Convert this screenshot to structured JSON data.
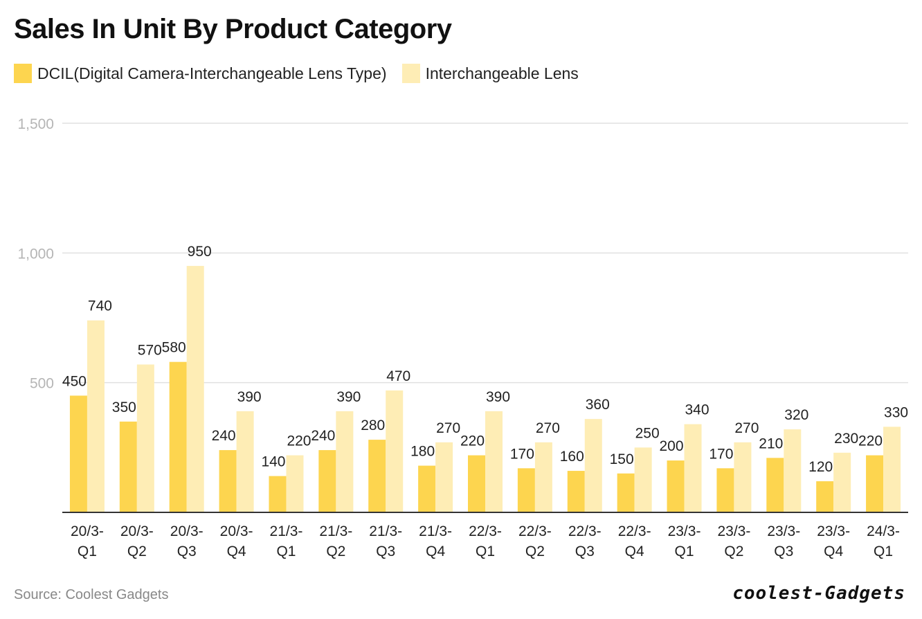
{
  "chart_data": {
    "type": "bar",
    "title": "Sales In Unit By Product Category",
    "xlabel": "",
    "ylabel": "",
    "ylim": [
      0,
      1500
    ],
    "yticks": [
      500,
      1000,
      1500
    ],
    "ytick_labels": [
      "500",
      "1,000",
      "1,500"
    ],
    "grid": true,
    "legend_position": "top-left",
    "categories": [
      [
        "20/3-",
        "Q1"
      ],
      [
        "20/3-",
        "Q2"
      ],
      [
        "20/3-",
        "Q3"
      ],
      [
        "20/3-",
        "Q4"
      ],
      [
        "21/3-",
        "Q1"
      ],
      [
        "21/3-",
        "Q2"
      ],
      [
        "21/3-",
        "Q3"
      ],
      [
        "21/3-",
        "Q4"
      ],
      [
        "22/3-",
        "Q1"
      ],
      [
        "22/3-",
        "Q2"
      ],
      [
        "22/3-",
        "Q3"
      ],
      [
        "22/3-",
        "Q4"
      ],
      [
        "23/3-",
        "Q1"
      ],
      [
        "23/3-",
        "Q2"
      ],
      [
        "23/3-",
        "Q3"
      ],
      [
        "23/3-",
        "Q4"
      ],
      [
        "24/3-",
        "Q1"
      ]
    ],
    "series": [
      {
        "name": "DCIL(Digital Camera-Interchangeable Lens Type)",
        "color": "#FDD54F",
        "values": [
          450,
          350,
          580,
          240,
          140,
          240,
          280,
          180,
          220,
          170,
          160,
          150,
          200,
          170,
          210,
          120,
          220
        ]
      },
      {
        "name": "Interchangeable Lens",
        "color": "#FEEDB5",
        "values": [
          740,
          570,
          950,
          390,
          220,
          390,
          470,
          270,
          390,
          270,
          360,
          250,
          340,
          270,
          320,
          230,
          330
        ]
      }
    ]
  },
  "source": "Source: Coolest Gadgets",
  "brand": "coolest-Gadgets",
  "colors": {
    "grid": "#e0e0e0",
    "axis": "#333333",
    "tick_text": "#b5b5b5"
  }
}
